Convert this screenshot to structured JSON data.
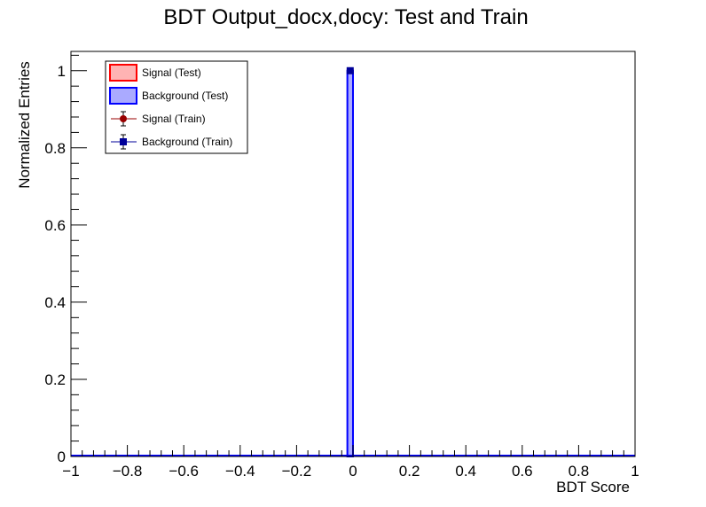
{
  "chart_data": {
    "type": "bar",
    "title": "BDT Output_docx,docy: Test and Train",
    "xlabel": "BDT Score",
    "ylabel": "Normalized Entries",
    "xlim": [
      -1,
      1
    ],
    "ylim": [
      0,
      1.05
    ],
    "x_ticks": [
      -1,
      -0.8,
      -0.6,
      -0.4,
      -0.2,
      0,
      0.2,
      0.4,
      0.6,
      0.8,
      1
    ],
    "x_tick_labels": [
      "−1",
      "−0.8",
      "−0.6",
      "−0.4",
      "−0.2",
      "0",
      "0.2",
      "0.4",
      "0.6",
      "0.8",
      "1"
    ],
    "y_ticks": [
      0,
      0.2,
      0.4,
      0.6,
      0.8,
      1
    ],
    "y_tick_labels": [
      "0",
      "0.2",
      "0.4",
      "0.6",
      "0.8",
      "1"
    ],
    "legend_position": "top-left",
    "series": [
      {
        "name": "Signal (Test)",
        "style": "filled-hist",
        "color": "#ff0000",
        "fill": "#ffb3b3",
        "bins": []
      },
      {
        "name": "Background (Test)",
        "style": "filled-hist",
        "color": "#0000ff",
        "fill": "#aaaaff",
        "bins": [
          {
            "x0": -0.02,
            "x1": 0.0,
            "value": 1.0
          }
        ]
      },
      {
        "name": "Signal (Train)",
        "style": "markers",
        "color": "#990000",
        "marker": "circle",
        "points": []
      },
      {
        "name": "Background (Train)",
        "style": "markers",
        "color": "#000099",
        "marker": "square",
        "points": [
          {
            "x": -0.01,
            "y": 1.0
          }
        ]
      }
    ]
  }
}
